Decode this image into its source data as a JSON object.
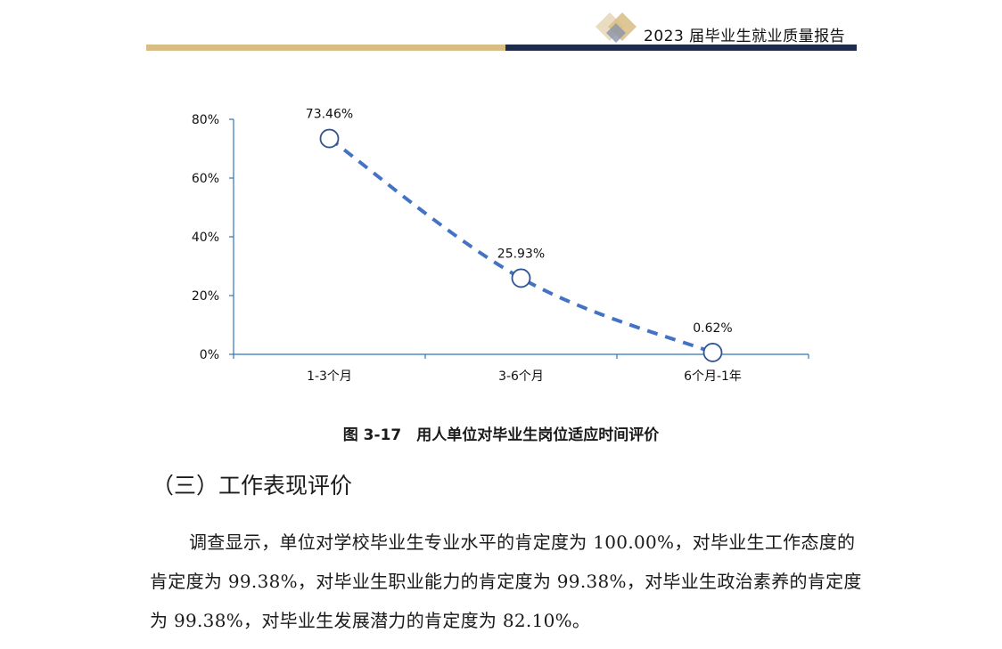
{
  "header": {
    "report_title": "2023 届毕业生就业质量报告",
    "colors": {
      "gold": "#d8bd85",
      "navy": "#1f2b4a"
    }
  },
  "chart_data": {
    "type": "line",
    "categories": [
      "1-3个月",
      "3-6个月",
      "6个月-1年"
    ],
    "values": [
      73.46,
      25.93,
      0.62
    ],
    "data_labels": [
      "73.46%",
      "25.93%",
      "0.62%"
    ],
    "y_ticks": [
      "0%",
      "20%",
      "40%",
      "60%",
      "80%"
    ],
    "ylim": [
      0,
      80
    ],
    "title": "",
    "xlabel": "",
    "ylabel": "",
    "grid": false,
    "line_style": "dashed",
    "line_color": "#4472c4",
    "axis_color": "#2e75b6"
  },
  "figure": {
    "caption": "图 3-17　用人单位对毕业生岗位适应时间评价"
  },
  "section": {
    "heading": "（三）工作表现评价",
    "paragraph": "调查显示，单位对学校毕业生专业水平的肯定度为 100.00%，对毕业生工作态度的肯定度为 99.38%，对毕业生职业能力的肯定度为 99.38%，对毕业生政治素养的肯定度为 99.38%，对毕业生发展潜力的肯定度为 82.10%。"
  }
}
